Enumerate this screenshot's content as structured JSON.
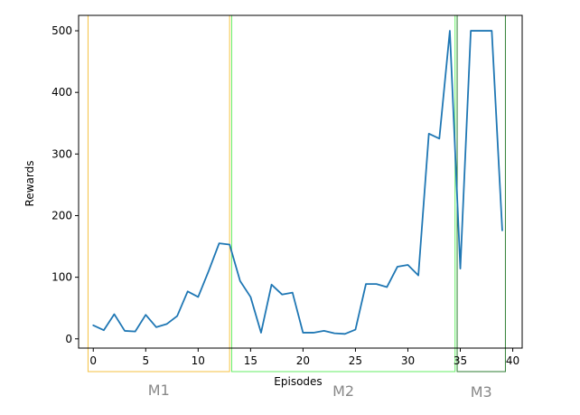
{
  "chart_data": {
    "type": "line",
    "title": "",
    "xlabel": "Episodes",
    "ylabel": "Rewards",
    "xlim": [
      -1.4,
      40.9
    ],
    "ylim": [
      -15,
      525
    ],
    "xticks": [
      0,
      5,
      10,
      15,
      20,
      25,
      30,
      35,
      40
    ],
    "yticks": [
      0,
      100,
      200,
      300,
      400,
      500
    ],
    "series": [
      {
        "name": "Rewards",
        "color": "#1f77b4",
        "x": [
          0,
          1,
          2,
          3,
          4,
          5,
          6,
          7,
          8,
          9,
          10,
          11,
          12,
          13,
          14,
          15,
          16,
          17,
          18,
          19,
          20,
          21,
          22,
          23,
          24,
          25,
          26,
          27,
          28,
          29,
          30,
          31,
          32,
          33,
          34,
          35,
          36,
          37,
          38,
          39
        ],
        "values": [
          22,
          14,
          40,
          13,
          12,
          39,
          19,
          24,
          37,
          77,
          68,
          110,
          155,
          153,
          94,
          68,
          10,
          88,
          72,
          75,
          10,
          10,
          13,
          9,
          8,
          15,
          89,
          89,
          84,
          117,
          120,
          103,
          333,
          325,
          500,
          114,
          500,
          500,
          500,
          176
        ]
      }
    ],
    "regions": [
      {
        "label": "M1",
        "x_start": -0.5,
        "x_end": 13.0,
        "color": "#f5c242"
      },
      {
        "label": "M2",
        "x_start": 13.2,
        "x_end": 34.5,
        "color": "#66ee66"
      },
      {
        "label": "M3",
        "x_start": 34.7,
        "x_end": 39.3,
        "color": "#2e7d32"
      }
    ]
  }
}
